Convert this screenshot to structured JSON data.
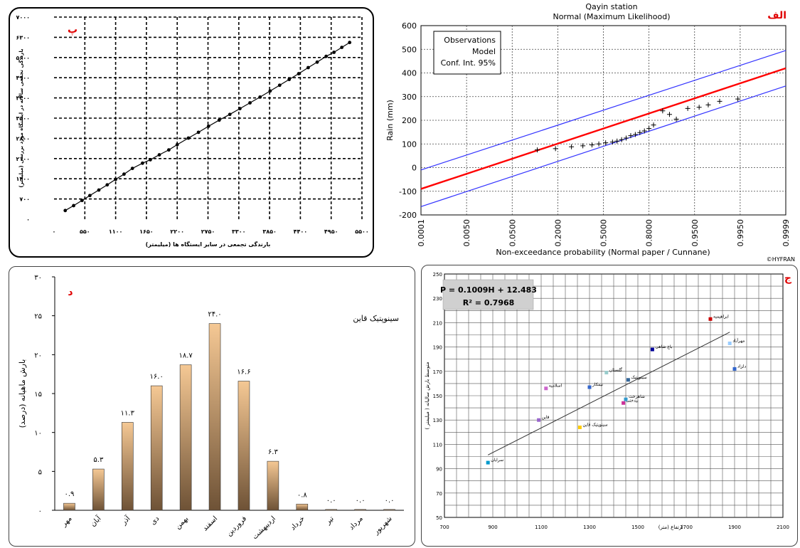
{
  "chart_data": [
    {
      "id": "p",
      "type": "line",
      "panel_label": "پ",
      "xlabel": "بارندگی تجمعی در سایر ایستگاه ها (میلیمتر)",
      "ylabel": "بارندگی تجمعی سالانه در ایستگاه مورد بررسی (میلیمتر)",
      "xticks": [
        "۰",
        "۵۵۰",
        "۱۱۰۰",
        "۱۶۵۰",
        "۲۲۰۰",
        "۲۷۵۰",
        "۳۳۰۰",
        "۳۸۵۰",
        "۴۴۰۰",
        "۴۹۵۰",
        "۵۵۰۰"
      ],
      "yticks": [
        "۰",
        "۷۰۰",
        "۱۴۰۰",
        "۲۱۰۰",
        "۲۸۰۰",
        "۳۵۰۰",
        "۴۲۰۰",
        "۴۹۰۰",
        "۵۶۰۰",
        "۶۳۰۰",
        "۷۰۰۰"
      ],
      "xlim": [
        0,
        5500
      ],
      "ylim": [
        0,
        7000
      ],
      "grid": true,
      "x": [
        200,
        350,
        500,
        640,
        800,
        950,
        1100,
        1250,
        1400,
        1580,
        1720,
        1880,
        2050,
        2200,
        2400,
        2580,
        2760,
        2950,
        3140,
        3320,
        3500,
        3680,
        3860,
        4030,
        4200,
        4370,
        4540,
        4700,
        4860,
        5000,
        5140,
        5280
      ],
      "y": [
        300,
        470,
        650,
        820,
        1010,
        1190,
        1380,
        1560,
        1760,
        1940,
        2060,
        2230,
        2400,
        2580,
        2810,
        3010,
        3220,
        3430,
        3630,
        3830,
        4030,
        4230,
        4440,
        4640,
        4840,
        5040,
        5250,
        5440,
        5640,
        5780,
        5950,
        6120
      ]
    },
    {
      "id": "alef",
      "type": "line",
      "panel_label": "الف",
      "title": "Qayin station",
      "subtitle": "Normal (Maximum Likelihood)",
      "xlabel": "Non-exceedance probability (Normal paper / Cunnane)",
      "ylabel": "Rain (mm)",
      "ylim": [
        -200,
        600
      ],
      "yticks": [
        -200,
        -100,
        0,
        100,
        200,
        300,
        400,
        500,
        600
      ],
      "xticks": [
        "0.0001",
        "0.0050",
        "0.0500",
        "0.2000",
        "0.5000",
        "0.8000",
        "0.9500",
        "0.9950",
        "0.9999"
      ],
      "grid": true,
      "legend": [
        "Observations",
        "Model",
        "Conf. Int. 95%"
      ],
      "legend_position": "top-left",
      "watermark": "©HYFRAN",
      "series": [
        {
          "name": "Model",
          "color": "#ff0000",
          "x": [
            0,
            8
          ],
          "y": [
            -90,
            420
          ]
        },
        {
          "name": "Conf. Int. 95%",
          "color": "#3333ff",
          "x": [
            0,
            8
          ],
          "y": [
            -10,
            495
          ]
        },
        {
          "name": "Conf. Int. 95%",
          "color": "#3333ff",
          "x": [
            0,
            8
          ],
          "y": [
            -165,
            345
          ]
        }
      ],
      "observations": {
        "x": [
          2.55,
          2.95,
          3.3,
          3.55,
          3.75,
          3.9,
          4.05,
          4.2,
          4.3,
          4.4,
          4.5,
          4.6,
          4.7,
          4.8,
          4.9,
          5.0,
          5.1,
          5.3,
          5.45,
          5.6,
          5.85,
          6.1,
          6.3,
          6.55,
          6.95
        ],
        "y": [
          75,
          80,
          88,
          92,
          96,
          100,
          105,
          108,
          112,
          118,
          125,
          135,
          140,
          148,
          155,
          165,
          180,
          240,
          225,
          205,
          250,
          255,
          265,
          280,
          290
        ]
      }
    },
    {
      "id": "d",
      "type": "bar",
      "panel_label": "د",
      "legend": [
        "سینوپتیک قاین"
      ],
      "ylabel": "بارش ماهیانه (درصد)",
      "ylim": [
        0,
        30
      ],
      "yticks": [
        "۰",
        "۵",
        "۱۰",
        "۱۵",
        "۲۰",
        "۲۵",
        "۳۰"
      ],
      "categories": [
        "مهر",
        "آبان",
        "آذر",
        "دی",
        "بهمن",
        "اسفند",
        "فروردین",
        "اردیبهشت",
        "خرداد",
        "تیر",
        "مرداد",
        "شهریور"
      ],
      "values": [
        0.9,
        5.3,
        11.3,
        16.0,
        18.7,
        24.0,
        16.6,
        6.3,
        0.8,
        0.0,
        0.0,
        0.0
      ],
      "value_labels": [
        "۰.۹",
        "۵.۳",
        "۱۱.۳",
        "۱۶.۰",
        "۱۸.۷",
        "۲۴.۰",
        "۱۶.۶",
        "۶.۳",
        "۰.۸",
        "۰.۰",
        "۰.۰",
        "۰.۰"
      ]
    },
    {
      "id": "j",
      "type": "scatter",
      "panel_label": "ج",
      "equation": "P = 0.1009H + 12.483",
      "r2": "R² = 0.7968",
      "xlabel": "ارتفاع (متر)",
      "ylabel": "متوسط بارش سالیانه ( میلیمتر )",
      "xlim": [
        700,
        2100
      ],
      "ylim": [
        50,
        250
      ],
      "xticks": [
        700,
        900,
        1100,
        1300,
        1500,
        1700,
        1900,
        2100
      ],
      "yticks": [
        50,
        70,
        90,
        110,
        130,
        150,
        170,
        190,
        210,
        230,
        250
      ],
      "grid": true,
      "trendline": {
        "x": [
          880,
          1880
        ],
        "y": [
          101.3,
          202.2
        ]
      },
      "points": [
        {
          "x": 880,
          "y": 95,
          "color": "#0099cc",
          "label": "سرایان"
        },
        {
          "x": 1090,
          "y": 130,
          "color": "#9966cc",
          "label": "قاین"
        },
        {
          "x": 1120,
          "y": 156,
          "color": "#cc66cc",
          "label": "اسلامیه"
        },
        {
          "x": 1260,
          "y": 124,
          "color": "#ffcc00",
          "label": "سینوپتیک قاین"
        },
        {
          "x": 1300,
          "y": 157,
          "color": "#3366cc",
          "label": "نیمکار"
        },
        {
          "x": 1370,
          "y": 169,
          "color": "#99cccc",
          "label": "گلستان"
        },
        {
          "x": 1440,
          "y": 144,
          "color": "#cc3399",
          "label": "بیدختی"
        },
        {
          "x": 1450,
          "y": 147,
          "color": "#3399cc",
          "label": "شاهرخت"
        },
        {
          "x": 1460,
          "y": 163,
          "color": "#336699",
          "label": "سینوپتیک"
        },
        {
          "x": 1560,
          "y": 188,
          "color": "#000099",
          "label": "باغ شاهی"
        },
        {
          "x": 1800,
          "y": 213,
          "color": "#cc0000",
          "label": "ابراهیمیه"
        },
        {
          "x": 1880,
          "y": 193,
          "color": "#99ccff",
          "label": "مهرآباد"
        },
        {
          "x": 1900,
          "y": 172,
          "color": "#3366cc",
          "label": "دلزاد"
        }
      ]
    }
  ]
}
